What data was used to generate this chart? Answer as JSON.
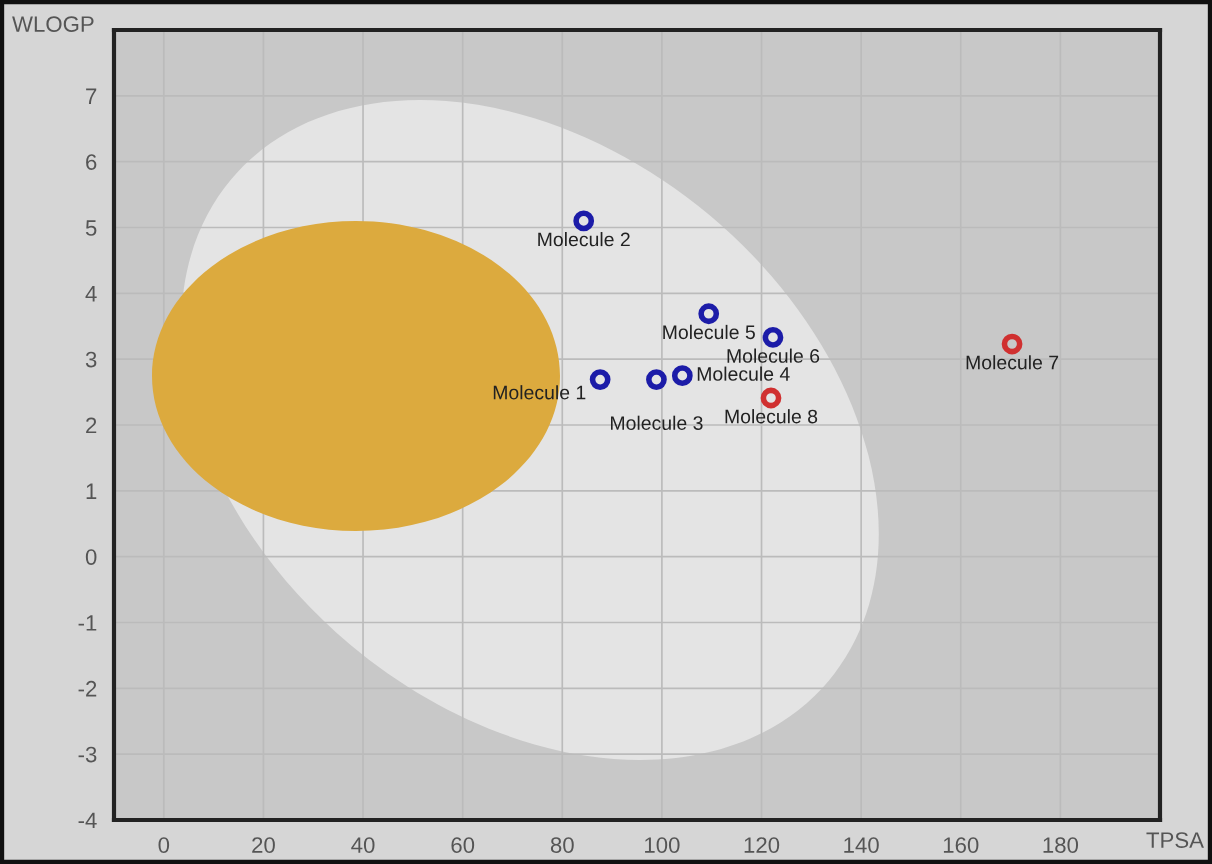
{
  "chart_data": {
    "type": "scatter",
    "xlabel": "TPSA",
    "ylabel": "WLOGP",
    "xlim": [
      -10,
      200
    ],
    "ylim": [
      -4,
      8
    ],
    "xticks": [
      0,
      20,
      40,
      60,
      80,
      100,
      120,
      140,
      160,
      180
    ],
    "yticks": [
      -4,
      -3,
      -2,
      -1,
      0,
      1,
      2,
      3,
      4,
      5,
      6,
      7
    ],
    "grid": true,
    "marker": "circle",
    "series": [
      {
        "color": "#1c1ca8",
        "x": [
          87.6,
          84.3,
          98.9,
          104.1,
          109.4,
          122.3
        ],
        "values": [
          2.69,
          5.1,
          2.69,
          2.75,
          3.69,
          3.33
        ]
      },
      {
        "color": "#d03030",
        "x": [
          170.3,
          121.9
        ],
        "values": [
          3.23,
          2.41
        ]
      }
    ],
    "annotations": [
      {
        "text": "Molecule 1",
        "x": 87.6,
        "y": 2.69
      },
      {
        "text": "Molecule 2",
        "x": 84.3,
        "y": 5.1
      },
      {
        "text": "Molecule 3",
        "x": 98.9,
        "y": 2.69
      },
      {
        "text": "Molecule 4",
        "x": 104.1,
        "y": 2.75
      },
      {
        "text": "Molecule 5",
        "x": 109.4,
        "y": 3.69
      },
      {
        "text": "Molecule 6",
        "x": 122.3,
        "y": 3.33
      },
      {
        "text": "Molecule 7",
        "x": 170.3,
        "y": 3.23
      },
      {
        "text": "Molecule 8",
        "x": 121.9,
        "y": 2.41
      }
    ]
  }
}
